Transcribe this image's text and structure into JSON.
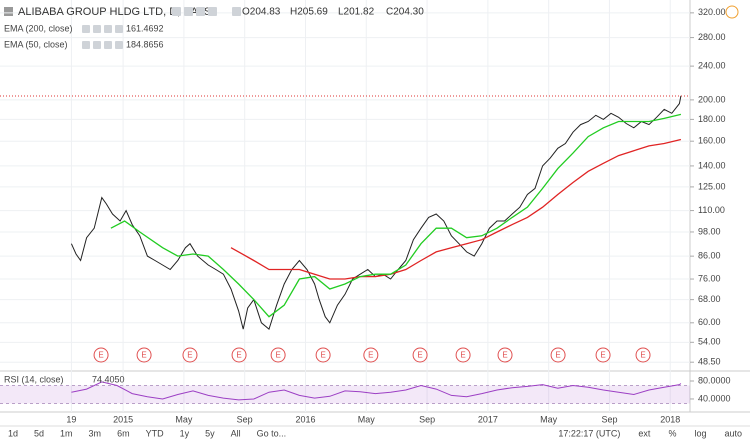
{
  "chart_data": {
    "type": "line",
    "title": "ALIBABA GROUP HLDG LTD, D, BATS",
    "ohlc": [
      "O204.83",
      "H205.69",
      "L201.82",
      "C204.30"
    ],
    "log_scale": true,
    "grid": true,
    "xlim": [
      -4.7,
      40.7
    ],
    "ylim": [
      46.5,
      343
    ],
    "xticks": [
      {
        "value": 0,
        "label": "19"
      },
      {
        "value": 3.4,
        "label": "2015"
      },
      {
        "value": 7.4,
        "label": "May"
      },
      {
        "value": 11.4,
        "label": "Sep"
      },
      {
        "value": 15.4,
        "label": "2016"
      },
      {
        "value": 19.4,
        "label": "May"
      },
      {
        "value": 23.4,
        "label": "Sep"
      },
      {
        "value": 27.4,
        "label": "2017"
      },
      {
        "value": 31.4,
        "label": "May"
      },
      {
        "value": 35.4,
        "label": "Sep"
      },
      {
        "value": 39.4,
        "label": "2018"
      }
    ],
    "yticks": [
      {
        "value": 320,
        "label": "320.00"
      },
      {
        "value": 280,
        "label": "280.00"
      },
      {
        "value": 240,
        "label": "240.00"
      },
      {
        "value": 200,
        "label": "200.00"
      },
      {
        "value": 180,
        "label": "180.00"
      },
      {
        "value": 160,
        "label": "160.00"
      },
      {
        "value": 140,
        "label": "140.00"
      },
      {
        "value": 125,
        "label": "125.00"
      },
      {
        "value": 110,
        "label": "110.00"
      },
      {
        "value": 98,
        "label": "98.00"
      },
      {
        "value": 86,
        "label": "86.00"
      },
      {
        "value": 76,
        "label": "76.00"
      },
      {
        "value": 68,
        "label": "68.00"
      },
      {
        "value": 60,
        "label": "60.00"
      },
      {
        "value": 54,
        "label": "54.00"
      },
      {
        "value": 48.5,
        "label": "48.50"
      }
    ],
    "series": [
      {
        "color": "#222222",
        "x": [
          0,
          0.3,
          0.6,
          1,
          1.5,
          2,
          2.3,
          2.7,
          3.2,
          3.6,
          4,
          4.5,
          5,
          5.5,
          6,
          6.5,
          7,
          7.5,
          7.8,
          8.3,
          9,
          9.5,
          10,
          10.5,
          11,
          11.3,
          11.6,
          12,
          12.5,
          13,
          13.5,
          14,
          14.5,
          15,
          15.5,
          16,
          16.3,
          16.7,
          17,
          17.5,
          18,
          18.5,
          19,
          19.5,
          20,
          20.5,
          21,
          21.5,
          22,
          22.5,
          23,
          23.5,
          24,
          24.5,
          25,
          25.5,
          26,
          26.5,
          27,
          27.5,
          28,
          28.5,
          29,
          29.5,
          30,
          30.5,
          31,
          31.5,
          32,
          32.5,
          33,
          33.5,
          34,
          34.5,
          35,
          35.5,
          36,
          36.5,
          37,
          37.5,
          38,
          38.5,
          39,
          39.5,
          40,
          40.1
        ],
        "values": [
          92,
          87,
          84,
          95,
          100,
          118,
          114,
          108,
          104,
          110,
          102,
          96,
          86,
          84,
          82,
          80,
          84,
          90,
          92,
          86,
          82,
          80,
          78,
          72,
          64,
          58,
          65,
          68,
          60,
          58,
          66,
          74,
          80,
          84,
          80,
          74,
          68,
          62,
          60,
          66,
          70,
          76,
          78,
          80,
          77,
          78,
          76,
          80,
          84,
          94,
          100,
          106,
          108,
          104,
          96,
          92,
          88,
          86,
          92,
          100,
          104,
          104,
          108,
          112,
          120,
          124,
          140,
          146,
          154,
          158,
          168,
          175,
          178,
          184,
          180,
          186,
          182,
          176,
          172,
          178,
          175,
          182,
          190,
          186,
          196,
          204.3
        ]
      },
      {
        "name": "EMA (200, close)",
        "color": "#e02424",
        "x": [
          10.5,
          11,
          12,
          13,
          14,
          15,
          16,
          17,
          18,
          19,
          20,
          21,
          22,
          23,
          24,
          25,
          26,
          27,
          28,
          29,
          30,
          31,
          32,
          33,
          34,
          35,
          36,
          37,
          38,
          39,
          40.1
        ],
        "values": [
          90,
          88,
          84,
          80,
          80,
          80,
          78,
          76,
          76,
          77,
          77,
          78,
          80,
          84,
          88,
          90,
          92,
          94,
          98,
          102,
          106,
          112,
          120,
          128,
          136,
          142,
          148,
          152,
          156,
          158,
          161.4692
        ]
      },
      {
        "name": "EMA (50, close)",
        "color": "#22cc22",
        "x": [
          2.6,
          3.5,
          4.5,
          6,
          7,
          8,
          9,
          10,
          11,
          12,
          13,
          14,
          15,
          16,
          17,
          18,
          19,
          20,
          21,
          22,
          23,
          24,
          25,
          26,
          27,
          28,
          29,
          30,
          31,
          32,
          33,
          34,
          35,
          36,
          37,
          38,
          39,
          40.1
        ],
        "values": [
          100,
          104,
          98,
          90,
          86,
          87,
          86,
          80,
          74,
          68,
          62,
          66,
          76,
          77,
          72,
          74,
          77,
          78,
          78,
          82,
          92,
          100,
          100,
          95,
          96,
          100,
          106,
          112,
          124,
          138,
          150,
          164,
          172,
          178,
          178,
          178,
          181,
          184.8656
        ]
      }
    ],
    "earnings": {
      "label": "E",
      "x": [
        1.95,
        4.78,
        7.8,
        11.03,
        13.6,
        16.56,
        19.7,
        22.94,
        25.77,
        28.53,
        32.02,
        34.98,
        37.61
      ]
    },
    "rsi": {
      "name": "RSI (14, close)",
      "color": "#9c3fc4",
      "last_label": "74.4050",
      "ylim": [
        11,
        100
      ],
      "band": [
        30,
        70
      ],
      "yticks": [
        {
          "value": 80,
          "label": "80.0000"
        },
        {
          "value": 40,
          "label": "40.0000"
        }
      ],
      "x": [
        0,
        1,
        2,
        3,
        4,
        5,
        6,
        7,
        8,
        9,
        10,
        11,
        12,
        13,
        14,
        15,
        16,
        17,
        18,
        19,
        20,
        21,
        22,
        23,
        24,
        25,
        26,
        27,
        28,
        29,
        30,
        31,
        32,
        33,
        34,
        35,
        36,
        37,
        38,
        39,
        40,
        40.1
      ],
      "values": [
        55,
        62,
        78,
        70,
        52,
        45,
        40,
        50,
        58,
        48,
        42,
        38,
        40,
        55,
        60,
        48,
        42,
        46,
        58,
        56,
        52,
        55,
        60,
        70,
        62,
        48,
        45,
        52,
        60,
        65,
        68,
        72,
        64,
        70,
        66,
        60,
        55,
        50,
        60,
        66,
        72,
        74.405
      ]
    },
    "toolbar": {
      "left": [
        "1d",
        "5d",
        "1m",
        "3m",
        "6m",
        "YTD",
        "1y",
        "5y",
        "All",
        "Go to..."
      ],
      "right": [
        "17:22:17 (UTC)",
        "ext",
        "%",
        "log",
        "auto"
      ]
    }
  }
}
